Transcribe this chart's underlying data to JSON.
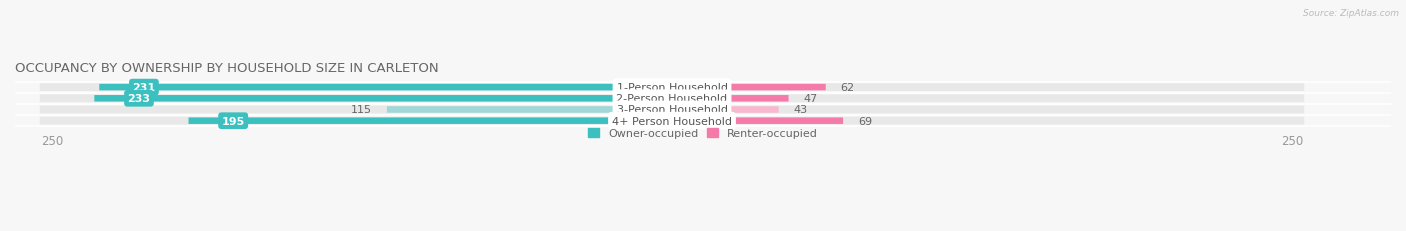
{
  "title": "OCCUPANCY BY OWNERSHIP BY HOUSEHOLD SIZE IN CARLETON",
  "source": "Source: ZipAtlas.com",
  "categories": [
    "1-Person Household",
    "2-Person Household",
    "3-Person Household",
    "4+ Person Household"
  ],
  "owner_values": [
    231,
    233,
    115,
    195
  ],
  "renter_values": [
    62,
    47,
    43,
    69
  ],
  "axis_max": 250,
  "owner_color": "#3bbfbf",
  "renter_color": "#f47aaa",
  "owner_light_color": "#a0d8d8",
  "renter_light_color": "#f9b8ce",
  "row_bg_color": "#e8e8e8",
  "label_bg_color": "#ffffff",
  "fig_bg_color": "#f7f7f7",
  "title_color": "#666666",
  "tick_color": "#999999",
  "label_color": "#666666",
  "title_fontsize": 9.5,
  "label_fontsize": 8,
  "tick_fontsize": 8.5,
  "bar_height": 0.58,
  "n_rows": 4,
  "owner_label_inside": [
    true,
    true,
    false,
    true
  ],
  "renter_lighter": [
    false,
    false,
    true,
    false
  ]
}
